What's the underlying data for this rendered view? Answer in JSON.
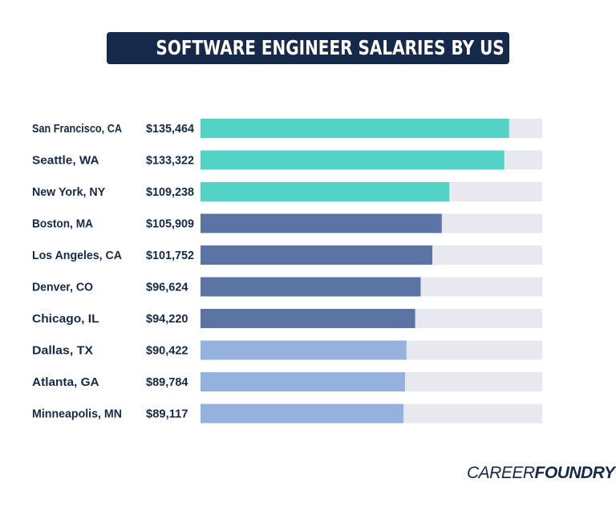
{
  "chart_data": {
    "type": "bar",
    "orientation": "horizontal",
    "title": "SOFTWARE ENGINEER SALARIES BY US CITY",
    "categories": [
      "San Francisco, CA",
      "Seattle, WA",
      "New York, NY",
      "Boston, MA",
      "Los Angeles, CA",
      "Denver, CO",
      "Chicago, IL",
      "Dallas, TX",
      "Atlanta, GA",
      "Minneapolis, MN"
    ],
    "values": [
      135464,
      133322,
      109238,
      105909,
      101752,
      96624,
      94220,
      90422,
      89784,
      89117
    ],
    "value_labels": [
      "$135,464",
      "$133,322",
      "$109,238",
      "$105,909",
      "$101,752",
      "$96,624",
      "$94,220",
      "$90,422",
      "$89,784",
      "$89,117"
    ],
    "bar_colors": [
      "#52d3c6",
      "#52d3c6",
      "#52d3c6",
      "#5a75a3",
      "#5a75a3",
      "#5a75a3",
      "#5a75a3",
      "#95b1de",
      "#95b1de",
      "#95b1de"
    ],
    "track_color": "#e8e9ee",
    "xlim": [
      0,
      150000
    ],
    "grid": false,
    "legend": "none"
  },
  "colors": {
    "title_bg": "#15294b",
    "text": "#15294b"
  },
  "logo": {
    "part1": "CAREER",
    "part2": "FOUNDRY"
  }
}
